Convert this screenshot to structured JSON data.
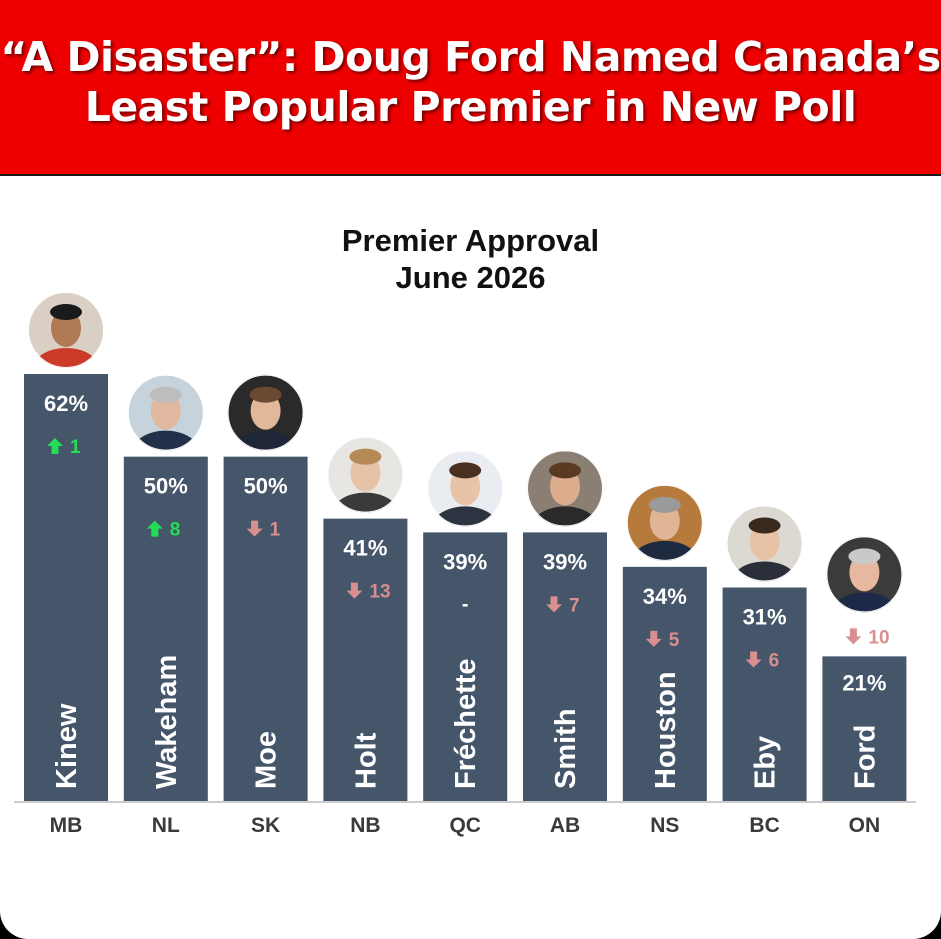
{
  "headline": {
    "line1": "“A Disaster”: Doug Ford Named Canada’s",
    "line2": "Least Popular Premier in New Poll"
  },
  "colors": {
    "banner": "#ee0000",
    "bar": "#45556a",
    "up": "#22dd55",
    "down": "#d98f8f"
  },
  "chart_data": {
    "type": "bar",
    "title": "Premier Approval",
    "subtitle": "June 2026",
    "categories": [
      "MB",
      "NL",
      "SK",
      "NB",
      "QC",
      "AB",
      "NS",
      "BC",
      "ON"
    ],
    "names": [
      "Kinew",
      "Wakeham",
      "Moe",
      "Holt",
      "Fréchette",
      "Smith",
      "Houston",
      "Eby",
      "Ford"
    ],
    "values": [
      62,
      50,
      50,
      41,
      39,
      39,
      34,
      31,
      21
    ],
    "value_labels": [
      "62%",
      "50%",
      "50%",
      "41%",
      "39%",
      "39%",
      "34%",
      "31%",
      "21%"
    ],
    "changes": [
      {
        "dir": "up",
        "text": "1"
      },
      {
        "dir": "up",
        "text": "8"
      },
      {
        "dir": "down",
        "text": "1"
      },
      {
        "dir": "down",
        "text": "13"
      },
      {
        "dir": "none",
        "text": "-"
      },
      {
        "dir": "down",
        "text": "7"
      },
      {
        "dir": "down",
        "text": "5"
      },
      {
        "dir": "down",
        "text": "6"
      },
      {
        "dir": "down",
        "text": "10"
      }
    ],
    "ylim": [
      0,
      62
    ],
    "photo_icons": [
      "kinew-photo",
      "wakeham-photo",
      "moe-photo",
      "holt-photo",
      "frechette-photo",
      "smith-photo",
      "houston-photo",
      "eby-photo",
      "ford-photo"
    ]
  }
}
